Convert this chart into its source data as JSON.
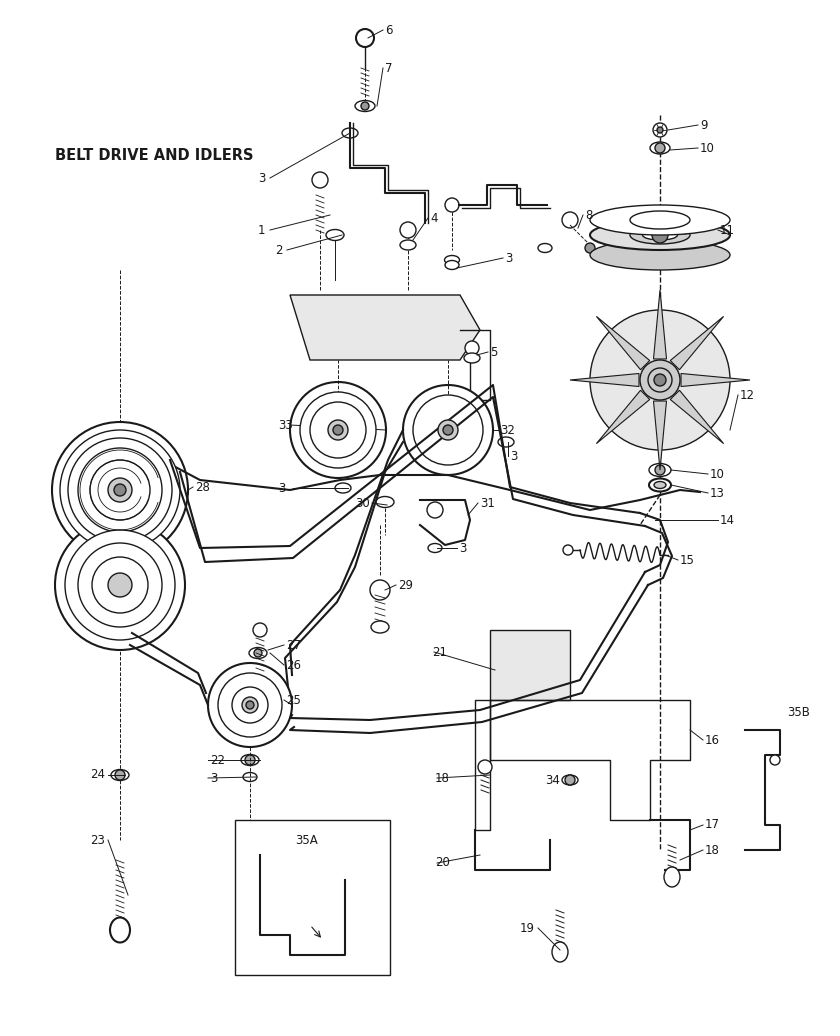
{
  "title": "BELT DRIVE AND IDLERS",
  "bg_color": "#ffffff",
  "line_color": "#1a1a1a",
  "title_fontsize": 10.5,
  "label_fontsize": 8.5,
  "fig_width": 8.4,
  "fig_height": 10.36,
  "dpi": 100
}
